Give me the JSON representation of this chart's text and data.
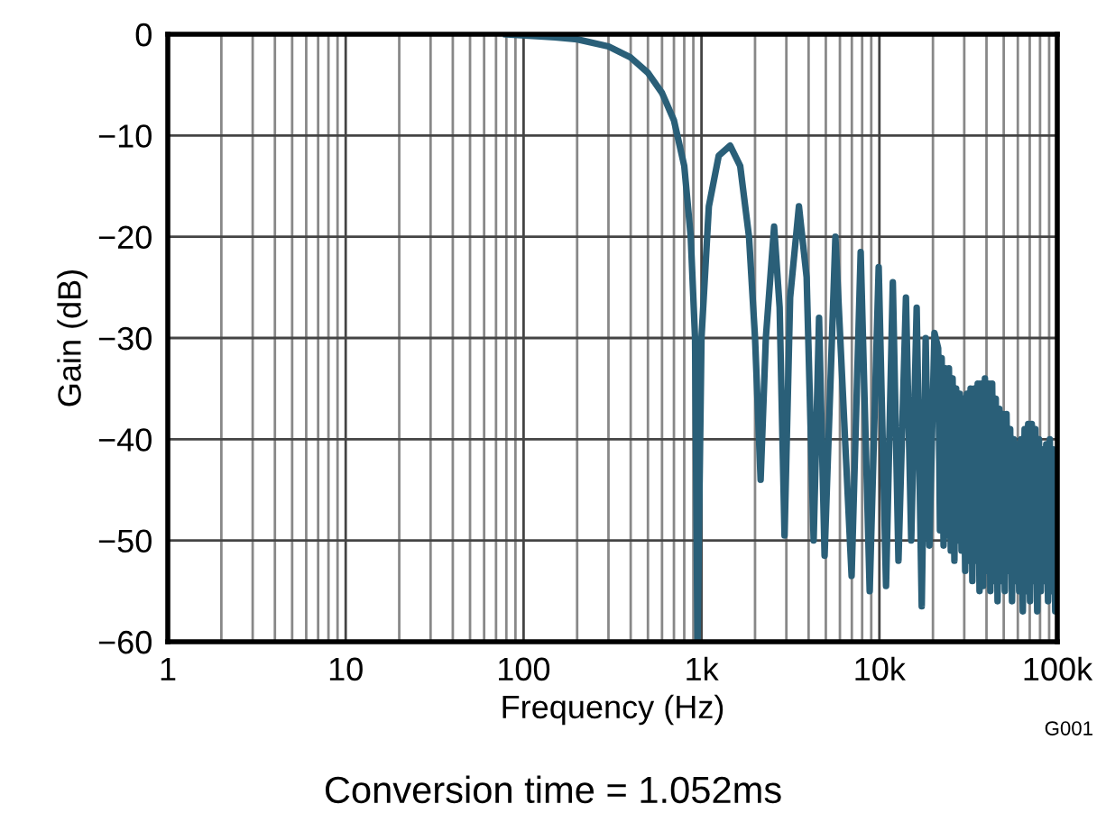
{
  "chart_data": {
    "type": "line",
    "xlabel": "Frequency (Hz)",
    "ylabel": "Gain (dB)",
    "annotations": [
      "G001",
      "Conversion time = 1.052ms"
    ],
    "log": "x",
    "grid": true,
    "marker": "none",
    "line_style": "solid",
    "xlim": [
      1,
      100000
    ],
    "xticks": [
      1,
      10,
      100,
      {
        "value": 1000,
        "label": "1k"
      },
      {
        "value": 10000,
        "label": "10k"
      },
      {
        "value": 100000,
        "label": "100k"
      }
    ],
    "ylim": [
      -60,
      0
    ],
    "yticks": [
      {
        "value": -60,
        "label": "−60"
      },
      {
        "value": -50,
        "label": "−50"
      },
      {
        "value": -40,
        "label": "−40"
      },
      {
        "value": -30,
        "label": "−30"
      },
      {
        "value": -20,
        "label": "−20"
      },
      {
        "value": -10,
        "label": "−10"
      },
      0
    ],
    "series": [
      {
        "color": "#2a5f78",
        "x": [
          80,
          150,
          200,
          300,
          400,
          500,
          600,
          700,
          800,
          870,
          920,
          950,
          1000,
          1100,
          1250,
          1450,
          1650,
          1850,
          2000,
          2150,
          2300,
          2560,
          2750,
          2930,
          3150,
          3530,
          3900,
          4270,
          4580,
          4920,
          5660,
          6980,
          7850,
          8820,
          9910,
          10900,
          11900,
          12800,
          14100,
          15100,
          16200,
          17300,
          18200,
          19100,
          20400,
          21400,
          21900,
          22400,
          22950,
          23500,
          24050,
          24600,
          25200,
          25800,
          26400,
          27000,
          27650,
          28300,
          28950,
          29650,
          30350,
          31050,
          31800,
          32550,
          33300,
          34100,
          34900,
          35700,
          36550,
          37400,
          38300,
          39200,
          40150,
          41100,
          42050,
          43050,
          44050,
          45100,
          46150,
          47250,
          48350,
          49500,
          50700,
          51850,
          53100,
          54350,
          55650,
          56950,
          58300,
          59650,
          61050,
          62500,
          64000,
          65500,
          67050,
          68600,
          70250,
          71900,
          73600,
          75300,
          77100,
          78900,
          80800,
          82700,
          84650,
          86650,
          88700,
          90800,
          92900,
          95100,
          97350,
          99650
        ],
        "values": [
          0,
          -0.3,
          -0.5,
          -1.2,
          -2.3,
          -3.8,
          -5.8,
          -8.5,
          -13,
          -20,
          -30,
          -60,
          -30,
          -17,
          -12,
          -11,
          -13,
          -20,
          -30,
          -44,
          -30,
          -19,
          -27,
          -49.5,
          -26,
          -17,
          -24,
          -50,
          -28,
          -51.5,
          -20,
          -53.5,
          -21.5,
          -55,
          -23,
          -54.5,
          -24.5,
          -52,
          -26,
          -50,
          -27,
          -56.5,
          -30,
          -50.5,
          -29.5,
          -31,
          -49,
          -32,
          -50.5,
          -33,
          -49.5,
          -33,
          -51,
          -34,
          -52,
          -35,
          -50,
          -35.5,
          -51,
          -36,
          -53,
          -35.5,
          -52,
          -35,
          -54,
          -35,
          -52,
          -34.5,
          -55,
          -34.5,
          -54.5,
          -34,
          -53,
          -34.5,
          -55,
          -34.5,
          -54,
          -36,
          -56,
          -37,
          -54,
          -37.5,
          -55,
          -37.5,
          -53,
          -39,
          -56,
          -40,
          -54,
          -40.5,
          -55,
          -40,
          -57,
          -39,
          -55,
          -38.5,
          -56,
          -38.5,
          -54,
          -39,
          -57,
          -40,
          -55,
          -41,
          -54,
          -40.5,
          -56,
          -40,
          -55,
          -41,
          -57,
          -44
        ]
      }
    ]
  }
}
